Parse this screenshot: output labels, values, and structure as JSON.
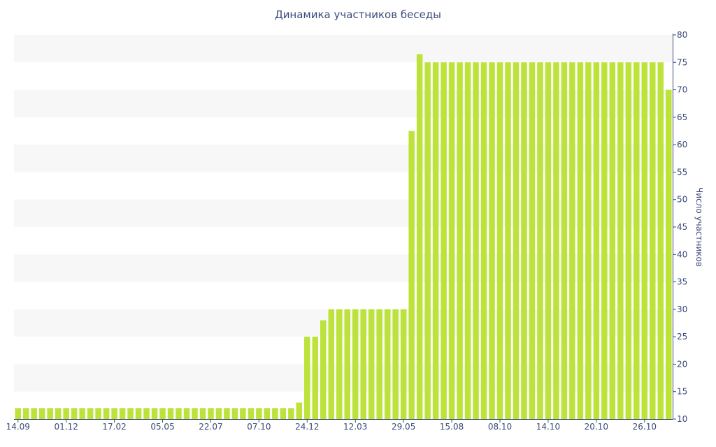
{
  "colors": {
    "bar": "#bde23a",
    "band": "#f7f7f7",
    "axis": "#3a4a7a",
    "text": "#3a4a7a"
  },
  "chart_data": {
    "type": "bar",
    "title": "Динамика участников беседы",
    "xlabel": "",
    "ylabel": "Число участников",
    "ylim": [
      10,
      80
    ],
    "y_ticks": [
      10,
      15,
      20,
      25,
      30,
      35,
      40,
      45,
      50,
      55,
      60,
      65,
      70,
      75,
      80
    ],
    "y_axis_side": "right",
    "grid": "alternating horizontal bands",
    "x_tick_labels": [
      {
        "index": 0,
        "label": "14.09"
      },
      {
        "index": 6,
        "label": "01.12"
      },
      {
        "index": 12,
        "label": "17.02"
      },
      {
        "index": 18,
        "label": "05.05"
      },
      {
        "index": 24,
        "label": "22.07"
      },
      {
        "index": 30,
        "label": "07.10"
      },
      {
        "index": 36,
        "label": "24.12"
      },
      {
        "index": 42,
        "label": "12.03"
      },
      {
        "index": 48,
        "label": "29.05"
      },
      {
        "index": 54,
        "label": "15.08"
      },
      {
        "index": 60,
        "label": "08.10"
      },
      {
        "index": 66,
        "label": "14.10"
      },
      {
        "index": 72,
        "label": "20.10"
      },
      {
        "index": 78,
        "label": "26.10"
      }
    ],
    "values": [
      12,
      12,
      12,
      12,
      12,
      12,
      12,
      12,
      12,
      12,
      12,
      12,
      12,
      12,
      12,
      12,
      12,
      12,
      12,
      12,
      12,
      12,
      12,
      12,
      12,
      12,
      12,
      12,
      12,
      12,
      12,
      12,
      12,
      12,
      12,
      13,
      25,
      25,
      28,
      30,
      30,
      30,
      30,
      30,
      30,
      30,
      30,
      30,
      30,
      62.5,
      76.5,
      75,
      75,
      75,
      75,
      75,
      75,
      75,
      75,
      75,
      75,
      75,
      75,
      75,
      75,
      75,
      75,
      75,
      75,
      75,
      75,
      75,
      75,
      75,
      75,
      75,
      75,
      75,
      75,
      75,
      75,
      70
    ]
  }
}
